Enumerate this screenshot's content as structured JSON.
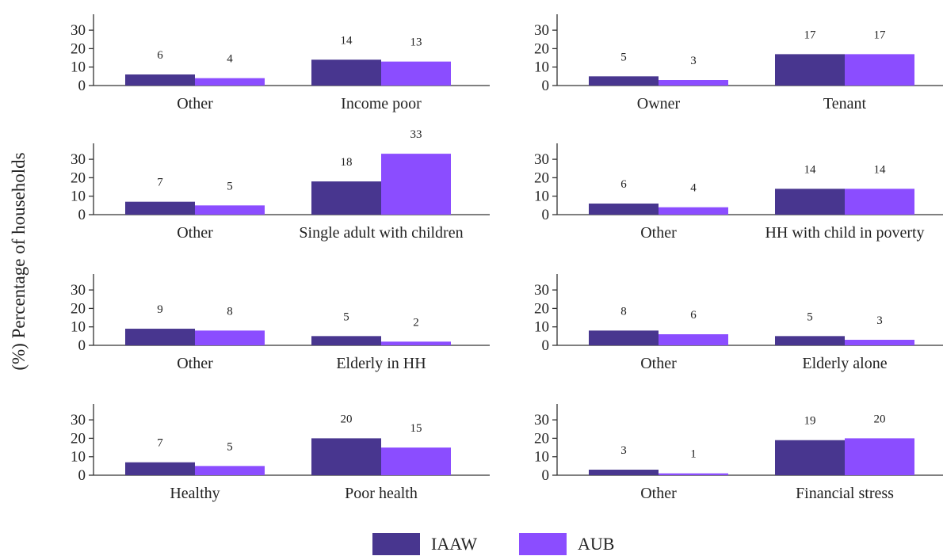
{
  "chart_data": {
    "type": "bar",
    "ylabel": "(%) Percentage of households",
    "yticks": [
      0,
      10,
      20,
      30
    ],
    "ylim": [
      0,
      40
    ],
    "series": [
      {
        "name": "IAAW",
        "color": "#48368F"
      },
      {
        "name": "AUB",
        "color": "#8B4DFF"
      }
    ],
    "panels": [
      {
        "categories": [
          "Other",
          "Income poor"
        ],
        "values": {
          "IAAW": [
            6,
            14
          ],
          "AUB": [
            4,
            13
          ]
        }
      },
      {
        "categories": [
          "Owner",
          "Tenant"
        ],
        "values": {
          "IAAW": [
            5,
            17
          ],
          "AUB": [
            3,
            17
          ]
        }
      },
      {
        "categories": [
          "Other",
          "Single adult with children"
        ],
        "values": {
          "IAAW": [
            7,
            18
          ],
          "AUB": [
            5,
            33
          ]
        }
      },
      {
        "categories": [
          "Other",
          "HH with child in poverty"
        ],
        "values": {
          "IAAW": [
            6,
            14
          ],
          "AUB": [
            4,
            14
          ]
        }
      },
      {
        "categories": [
          "Other",
          "Elderly in HH"
        ],
        "values": {
          "IAAW": [
            9,
            5
          ],
          "AUB": [
            8,
            2
          ]
        }
      },
      {
        "categories": [
          "Other",
          "Elderly alone"
        ],
        "values": {
          "IAAW": [
            8,
            5
          ],
          "AUB": [
            6,
            3
          ]
        }
      },
      {
        "categories": [
          "Healthy",
          "Poor health"
        ],
        "values": {
          "IAAW": [
            7,
            20
          ],
          "AUB": [
            5,
            15
          ]
        }
      },
      {
        "categories": [
          "Other",
          "Financial stress"
        ],
        "values": {
          "IAAW": [
            3,
            19
          ],
          "AUB": [
            1,
            20
          ]
        }
      }
    ]
  }
}
